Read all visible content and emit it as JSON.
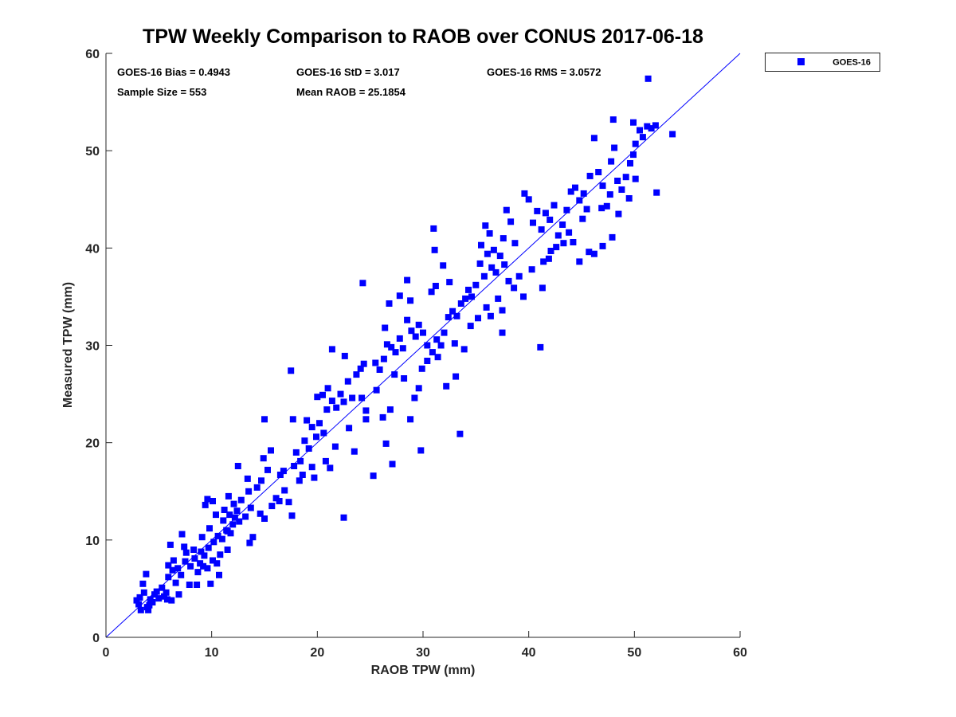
{
  "chart_data": {
    "type": "scatter",
    "title": "TPW Weekly Comparison to RAOB over CONUS 2017-06-18",
    "xlabel": "RAOB TPW (mm)",
    "ylabel": "Measured TPW (mm)",
    "xlim": [
      0,
      60
    ],
    "ylim": [
      0,
      60
    ],
    "xticks": [
      0,
      10,
      20,
      30,
      40,
      50,
      60
    ],
    "yticks": [
      0,
      10,
      20,
      30,
      40,
      50,
      60
    ],
    "grid": false,
    "legend_position": "outside-top-right",
    "reference_line": {
      "name": "1:1 line",
      "from": [
        0,
        0
      ],
      "to": [
        60,
        60
      ],
      "color": "#0000ff"
    },
    "annotations": {
      "bias": "GOES-16 Bias = 0.4943",
      "std": "GOES-16 StD = 3.017",
      "rms": "GOES-16 RMS = 3.0572",
      "sample_size": "Sample Size = 553",
      "mean_raob": "Mean RAOB = 25.1854"
    },
    "series": [
      {
        "name": "GOES-16",
        "color": "#0000ff",
        "marker": "square",
        "points": [
          [
            2.9,
            3.8
          ],
          [
            3.1,
            3.4
          ],
          [
            3.3,
            2.8
          ],
          [
            3.6,
            4.6
          ],
          [
            3.9,
            3.1
          ],
          [
            4.2,
            3.9
          ],
          [
            4.6,
            4.4
          ],
          [
            5.0,
            4.0
          ],
          [
            5.3,
            5.1
          ],
          [
            5.7,
            4.6
          ],
          [
            3.8,
            6.5
          ],
          [
            3.5,
            5.5
          ],
          [
            4.0,
            2.8
          ],
          [
            4.4,
            3.6
          ],
          [
            5.8,
            3.9
          ],
          [
            3.2,
            4.1
          ],
          [
            4.8,
            4.7
          ],
          [
            5.5,
            4.2
          ],
          [
            6.2,
            3.8
          ],
          [
            4.1,
            3.3
          ],
          [
            5.9,
            7.4
          ],
          [
            6.3,
            6.9
          ],
          [
            6.8,
            7.1
          ],
          [
            7.1,
            6.4
          ],
          [
            7.5,
            7.8
          ],
          [
            8.0,
            7.3
          ],
          [
            8.4,
            8.1
          ],
          [
            8.9,
            7.6
          ],
          [
            9.3,
            8.4
          ],
          [
            9.7,
            9.2
          ],
          [
            6.1,
            9.5
          ],
          [
            7.4,
            9.3
          ],
          [
            8.3,
            9.0
          ],
          [
            6.6,
            5.6
          ],
          [
            7.9,
            5.4
          ],
          [
            9.9,
            5.5
          ],
          [
            6.9,
            4.4
          ],
          [
            7.2,
            10.6
          ],
          [
            5.9,
            6.2
          ],
          [
            6.4,
            7.9
          ],
          [
            7.6,
            8.7
          ],
          [
            8.7,
            6.7
          ],
          [
            9.1,
            10.3
          ],
          [
            9.8,
            11.2
          ],
          [
            10.2,
            9.8
          ],
          [
            10.6,
            10.4
          ],
          [
            11.0,
            10.1
          ],
          [
            11.4,
            11.0
          ],
          [
            11.8,
            10.7
          ],
          [
            9.4,
            13.6
          ],
          [
            9.6,
            14.2
          ],
          [
            10.1,
            14.0
          ],
          [
            10.7,
            6.4
          ],
          [
            10.5,
            7.6
          ],
          [
            8.6,
            5.4
          ],
          [
            9.2,
            7.3
          ],
          [
            10.4,
            12.6
          ],
          [
            11.1,
            12.0
          ],
          [
            11.5,
            9.0
          ],
          [
            9.0,
            8.8
          ],
          [
            11.2,
            13.1
          ],
          [
            11.7,
            12.6
          ],
          [
            12.1,
            13.7
          ],
          [
            12.4,
            13.0
          ],
          [
            12.8,
            14.1
          ],
          [
            13.2,
            12.4
          ],
          [
            13.5,
            15.0
          ],
          [
            11.6,
            14.5
          ],
          [
            12.0,
            11.6
          ],
          [
            12.6,
            11.9
          ],
          [
            13.9,
            10.3
          ],
          [
            13.6,
            9.7
          ],
          [
            12.5,
            17.6
          ],
          [
            13.4,
            16.3
          ],
          [
            14.3,
            15.4
          ],
          [
            14.7,
            16.1
          ],
          [
            14.9,
            18.4
          ],
          [
            15.3,
            17.2
          ],
          [
            15.0,
            12.2
          ],
          [
            15.7,
            13.5
          ],
          [
            16.1,
            14.3
          ],
          [
            15.6,
            19.2
          ],
          [
            16.5,
            16.7
          ],
          [
            16.9,
            15.1
          ],
          [
            17.3,
            13.9
          ],
          [
            17.6,
            12.5
          ],
          [
            17.8,
            17.6
          ],
          [
            18.0,
            19.0
          ],
          [
            18.4,
            18.1
          ],
          [
            18.8,
            20.2
          ],
          [
            19.2,
            19.4
          ],
          [
            19.5,
            21.6
          ],
          [
            19.9,
            20.6
          ],
          [
            20.2,
            22.0
          ],
          [
            20.6,
            21.0
          ],
          [
            20.9,
            23.4
          ],
          [
            17.7,
            22.4
          ],
          [
            18.3,
            16.1
          ],
          [
            19.7,
            16.4
          ],
          [
            17.5,
            27.4
          ],
          [
            15.0,
            22.4
          ],
          [
            19.0,
            22.3
          ],
          [
            20.0,
            24.7
          ],
          [
            20.5,
            24.9
          ],
          [
            21.0,
            25.6
          ],
          [
            21.4,
            24.3
          ],
          [
            21.8,
            23.6
          ],
          [
            22.2,
            25.0
          ],
          [
            22.5,
            24.2
          ],
          [
            22.9,
            26.3
          ],
          [
            23.3,
            24.6
          ],
          [
            23.7,
            27.0
          ],
          [
            24.1,
            27.6
          ],
          [
            24.4,
            28.1
          ],
          [
            21.4,
            29.6
          ],
          [
            22.6,
            28.9
          ],
          [
            24.2,
            24.6
          ],
          [
            21.2,
            17.4
          ],
          [
            22.5,
            12.3
          ],
          [
            25.3,
            16.6
          ],
          [
            23.5,
            19.1
          ],
          [
            24.6,
            22.4
          ],
          [
            24.3,
            36.4
          ],
          [
            25.5,
            28.2
          ],
          [
            25.9,
            27.5
          ],
          [
            26.3,
            28.6
          ],
          [
            26.6,
            30.1
          ],
          [
            27.0,
            29.8
          ],
          [
            27.4,
            29.3
          ],
          [
            27.8,
            30.7
          ],
          [
            28.1,
            29.7
          ],
          [
            28.5,
            32.6
          ],
          [
            28.9,
            31.5
          ],
          [
            29.3,
            30.9
          ],
          [
            29.6,
            32.1
          ],
          [
            30.0,
            31.3
          ],
          [
            30.4,
            30.0
          ],
          [
            26.4,
            31.8
          ],
          [
            26.8,
            34.3
          ],
          [
            28.5,
            36.7
          ],
          [
            27.8,
            35.1
          ],
          [
            28.8,
            34.6
          ],
          [
            26.2,
            22.6
          ],
          [
            26.5,
            19.9
          ],
          [
            26.9,
            23.4
          ],
          [
            27.1,
            17.8
          ],
          [
            28.8,
            22.4
          ],
          [
            29.2,
            24.6
          ],
          [
            29.6,
            25.6
          ],
          [
            29.8,
            19.2
          ],
          [
            30.4,
            28.4
          ],
          [
            30.9,
            29.3
          ],
          [
            31.3,
            30.6
          ],
          [
            31.7,
            30.0
          ],
          [
            32.0,
            31.3
          ],
          [
            32.4,
            32.9
          ],
          [
            32.8,
            33.5
          ],
          [
            33.2,
            33.0
          ],
          [
            33.6,
            34.3
          ],
          [
            34.0,
            34.8
          ],
          [
            30.8,
            35.5
          ],
          [
            31.2,
            36.1
          ],
          [
            31.9,
            38.2
          ],
          [
            32.5,
            36.5
          ],
          [
            31.0,
            42.0
          ],
          [
            31.1,
            39.8
          ],
          [
            32.2,
            25.8
          ],
          [
            33.1,
            26.8
          ],
          [
            33.5,
            20.9
          ],
          [
            33.9,
            29.6
          ],
          [
            34.3,
            35.7
          ],
          [
            34.6,
            35.0
          ],
          [
            35.0,
            36.2
          ],
          [
            35.4,
            38.4
          ],
          [
            35.8,
            37.1
          ],
          [
            36.1,
            39.4
          ],
          [
            36.5,
            38.0
          ],
          [
            36.9,
            37.5
          ],
          [
            37.3,
            39.2
          ],
          [
            37.7,
            38.3
          ],
          [
            35.5,
            40.3
          ],
          [
            35.9,
            42.3
          ],
          [
            36.3,
            41.5
          ],
          [
            36.7,
            39.8
          ],
          [
            37.6,
            41.0
          ],
          [
            37.9,
            43.9
          ],
          [
            38.3,
            42.7
          ],
          [
            38.7,
            40.5
          ],
          [
            35.2,
            32.8
          ],
          [
            36.0,
            33.9
          ],
          [
            37.1,
            34.8
          ],
          [
            37.5,
            33.6
          ],
          [
            37.5,
            31.3
          ],
          [
            38.1,
            36.6
          ],
          [
            39.1,
            37.1
          ],
          [
            39.5,
            35.0
          ],
          [
            39.6,
            45.6
          ],
          [
            40.0,
            45.0
          ],
          [
            40.4,
            42.6
          ],
          [
            40.8,
            43.8
          ],
          [
            41.2,
            41.9
          ],
          [
            41.6,
            43.6
          ],
          [
            42.0,
            42.9
          ],
          [
            42.4,
            44.4
          ],
          [
            42.8,
            41.3
          ],
          [
            43.2,
            42.4
          ],
          [
            43.6,
            43.9
          ],
          [
            44.0,
            45.8
          ],
          [
            44.4,
            46.2
          ],
          [
            44.8,
            44.9
          ],
          [
            45.2,
            45.6
          ],
          [
            45.5,
            44.0
          ],
          [
            41.3,
            35.9
          ],
          [
            41.1,
            29.8
          ],
          [
            41.4,
            38.6
          ],
          [
            41.9,
            38.9
          ],
          [
            42.6,
            40.1
          ],
          [
            43.3,
            40.5
          ],
          [
            44.2,
            40.6
          ],
          [
            44.8,
            38.6
          ],
          [
            45.7,
            39.6
          ],
          [
            46.2,
            39.4
          ],
          [
            47.0,
            40.2
          ],
          [
            47.9,
            41.1
          ],
          [
            45.8,
            47.4
          ],
          [
            46.2,
            51.3
          ],
          [
            46.6,
            47.8
          ],
          [
            47.0,
            46.4
          ],
          [
            47.4,
            44.3
          ],
          [
            47.8,
            48.9
          ],
          [
            48.1,
            50.3
          ],
          [
            48.4,
            46.9
          ],
          [
            48.8,
            46.0
          ],
          [
            49.2,
            47.3
          ],
          [
            49.6,
            48.7
          ],
          [
            49.9,
            49.6
          ],
          [
            50.1,
            50.7
          ],
          [
            50.5,
            52.1
          ],
          [
            50.8,
            51.4
          ],
          [
            51.2,
            52.5
          ],
          [
            51.6,
            52.3
          ],
          [
            52.0,
            52.6
          ],
          [
            48.0,
            53.2
          ],
          [
            49.9,
            52.9
          ],
          [
            51.3,
            57.4
          ],
          [
            53.6,
            51.7
          ],
          [
            52.1,
            45.7
          ],
          [
            49.5,
            45.1
          ],
          [
            48.5,
            43.5
          ],
          [
            50.1,
            47.1
          ],
          [
            10.1,
            7.9
          ],
          [
            10.8,
            8.5
          ],
          [
            9.6,
            7.1
          ],
          [
            11.5,
            10.9
          ],
          [
            12.2,
            12.3
          ],
          [
            13.7,
            13.3
          ],
          [
            14.6,
            12.7
          ],
          [
            16.4,
            14.0
          ],
          [
            16.8,
            17.1
          ],
          [
            18.6,
            16.7
          ],
          [
            19.5,
            17.5
          ],
          [
            20.8,
            18.1
          ],
          [
            21.7,
            19.6
          ],
          [
            23.0,
            21.5
          ],
          [
            24.6,
            23.3
          ],
          [
            25.6,
            25.4
          ],
          [
            27.3,
            27.0
          ],
          [
            28.2,
            26.6
          ],
          [
            29.9,
            27.6
          ],
          [
            31.4,
            28.8
          ],
          [
            33.0,
            30.2
          ],
          [
            34.5,
            32.0
          ],
          [
            36.4,
            33.0
          ],
          [
            38.6,
            35.9
          ],
          [
            40.3,
            37.8
          ],
          [
            42.1,
            39.7
          ],
          [
            43.8,
            41.6
          ],
          [
            45.1,
            43.0
          ],
          [
            46.9,
            44.1
          ],
          [
            47.7,
            45.5
          ]
        ]
      }
    ]
  }
}
